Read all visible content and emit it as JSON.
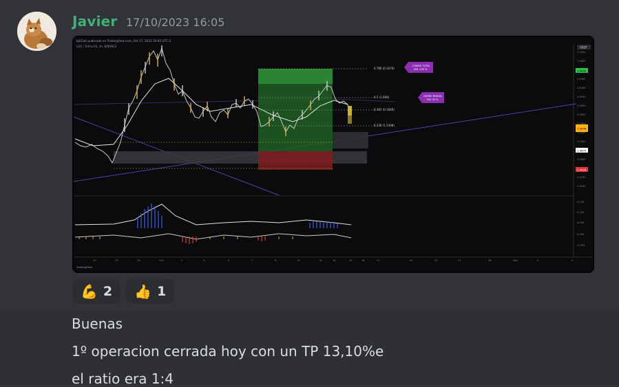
{
  "message": {
    "author": "Javier",
    "timestamp": "17/10/2023 16:05",
    "avatar_icon": "cat-avatar-icon"
  },
  "chart_header": {
    "title_line": "bjt23at publicado en TradingView.com, Oct 17, 2023 16:05 UTC-3",
    "symbol_line": "LDO / TetherUS, 4h, BINANCE",
    "currency": "USDT"
  },
  "chart_labels": {
    "box_top": "0.786 (0.1676)",
    "box_mid1": "0.5 (1.608)",
    "box_mid2": "0.382 (0.1669)",
    "box_mid3": "0.236 (1.5398)",
    "cierre_total": [
      "CIERRE TOTAL",
      "DEL 100 %"
    ],
    "cierre_parcial": [
      "CIERRE PARCIAL",
      "DEL 50 %"
    ]
  },
  "price_axis": [
    "1.7000",
    "1.6800",
    "1.6400",
    "1.6200",
    "1.6000",
    "1.5800",
    "1.5600",
    "1.5400",
    "1.5200",
    "1.5000",
    "1.4800",
    "1.4600",
    "1.4400",
    "1.4200",
    "1.4000"
  ],
  "price_tags": [
    {
      "value": "1.6400",
      "color": "#2fbf4a"
    },
    {
      "value": "1.5406",
      "color": "#ffb11a"
    },
    {
      "value": "1.4870",
      "color": "#ffffff"
    },
    {
      "value": "1.4420",
      "color": "#e0393b"
    }
  ],
  "osc_axis": [
    "0.150",
    "0.100",
    "0.050",
    "0.000",
    "-0.050"
  ],
  "date_axis": [
    "22",
    "23",
    "24",
    "Oct",
    "2",
    "3",
    "5",
    "7",
    "9",
    "11",
    "13",
    "14",
    "15",
    "16",
    "17",
    "20",
    "22",
    "27",
    "30",
    "Nov",
    "2",
    "4"
  ],
  "tradingview_logo": "TradingView",
  "reactions": [
    {
      "emoji": "💪",
      "count": "2",
      "name": "flexed-biceps"
    },
    {
      "emoji": "👍",
      "count": "1",
      "name": "thumbs-up"
    }
  ],
  "next_message": {
    "lines": [
      "Buenas",
      "1º operacion cerrada hoy con un TP 13,10%e",
      "el ratio era 1:4"
    ]
  }
}
